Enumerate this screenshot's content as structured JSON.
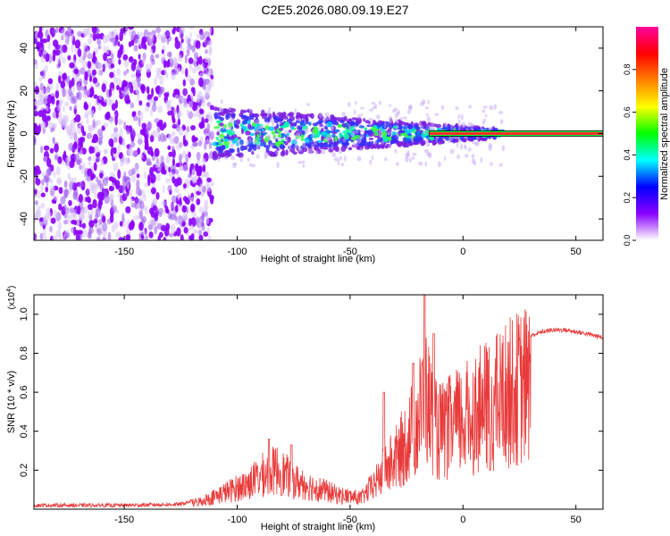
{
  "title": "C2E5.2026.080.09.19.E27",
  "colors": {
    "snr_line": "#e83a3a",
    "spectro_purple": "#7a1fe0",
    "spectro_light": "#c8a8f5",
    "centerline": "#ff2a2a"
  },
  "chart_data": [
    {
      "type": "heatmap",
      "name": "spectrogram",
      "xlabel": "Height of straight line (km)",
      "ylabel": "Frequency (Hz)",
      "xlim": [
        -190,
        62
      ],
      "ylim": [
        -50,
        50
      ],
      "x_ticks": [
        -150,
        -100,
        -50,
        0,
        50
      ],
      "x_tick_labels": [
        "-150",
        "-100",
        "-50",
        "0",
        "50"
      ],
      "y_ticks": [
        -40,
        -20,
        0,
        20,
        40
      ],
      "y_tick_labels": [
        "-40",
        "-20",
        "0",
        "20",
        "40"
      ],
      "noise_region_x": [
        -190,
        -111
      ],
      "signal_region_x": [
        -110,
        18
      ],
      "steady_line_x": [
        -15,
        62
      ],
      "steady_line_freq": 0,
      "colorbar": {
        "label": "Normalized spectral amplitude",
        "range": [
          0,
          1
        ],
        "ticks": [
          0.0,
          0.2,
          0.4,
          0.6,
          0.8
        ],
        "tick_labels": [
          "0.0",
          "0.2",
          "0.4",
          "0.6",
          "0.8"
        ],
        "colormap": [
          "#ffffff",
          "#8a00ff",
          "#0000ff",
          "#00ffff",
          "#00ff00",
          "#ffff00",
          "#ff8000",
          "#ff0000",
          "#ff00a0"
        ]
      }
    },
    {
      "type": "line",
      "name": "snr",
      "xlabel": "Height of straight line (km)",
      "ylabel": "SNR (10 * v/v)",
      "y_multiplier": "(x10",
      "y_multiplier_exp": "4",
      "y_multiplier_close": ")",
      "xlim": [
        -190,
        62
      ],
      "ylim": [
        0,
        1.1
      ],
      "x_ticks": [
        -150,
        -100,
        -50,
        0,
        50
      ],
      "x_tick_labels": [
        "-150",
        "-100",
        "-50",
        "0",
        "50"
      ],
      "y_ticks": [
        0.2,
        0.4,
        0.6,
        0.8,
        1.0
      ],
      "y_tick_labels": [
        "0.2",
        "0.4",
        "0.6",
        "0.8",
        "1.0"
      ],
      "envelope": {
        "x": [
          -190,
          -150,
          -125,
          -115,
          -105,
          -95,
          -88,
          -82,
          -75,
          -65,
          -55,
          -45,
          -38,
          -35,
          -30,
          -25,
          -20,
          -17,
          -15,
          -12,
          -8,
          -4,
          0,
          5,
          10,
          12,
          15,
          20,
          25,
          30,
          35,
          40,
          45,
          50,
          55,
          62
        ],
        "y": [
          0.02,
          0.02,
          0.025,
          0.06,
          0.12,
          0.18,
          0.25,
          0.28,
          0.2,
          0.15,
          0.1,
          0.08,
          0.2,
          0.28,
          0.35,
          0.48,
          0.62,
          0.8,
          0.72,
          0.55,
          0.55,
          0.6,
          0.62,
          0.68,
          0.72,
          0.72,
          0.76,
          0.82,
          0.86,
          0.89,
          0.91,
          0.92,
          0.92,
          0.91,
          0.9,
          0.88
        ]
      },
      "peaks": [
        {
          "x": -86,
          "y": 0.36
        },
        {
          "x": -76,
          "y": 0.33
        },
        {
          "x": -35,
          "y": 0.6
        },
        {
          "x": -22,
          "y": 0.75
        },
        {
          "x": -17,
          "y": 1.1
        },
        {
          "x": -13,
          "y": 0.9
        },
        {
          "x": 12,
          "y": 0.2
        }
      ]
    }
  ]
}
